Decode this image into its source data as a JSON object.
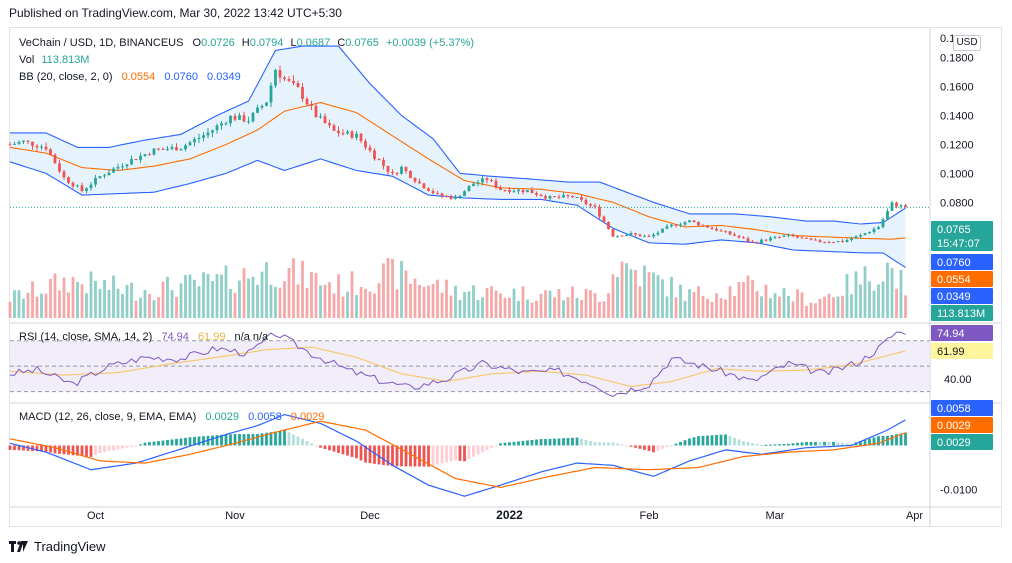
{
  "header": {
    "published": "Published on TradingView.com, Mar 30, 2022 13:42 UTC+5:30"
  },
  "footer": {
    "brand": "TradingView",
    "logo_icon": "tradingview-logo-icon"
  },
  "currency_badge": "USD",
  "legend": {
    "symbol": "VeChain / USD, 1D, BINANCEUS",
    "o_label": "O",
    "o": "0.0726",
    "h_label": "H",
    "h": "0.0794",
    "l_label": "L",
    "l": "0.0687",
    "c_label": "C",
    "c": "0.0765",
    "change": "+0.0039 (+5.37%)",
    "vol_label": "Vol",
    "vol": "113.813M",
    "bb_label": "BB (20, close, 2, 0)",
    "bb_basis": "0.0554",
    "bb_upper": "0.0760",
    "bb_lower": "0.0349",
    "rsi_label": "RSI (14, close, SMA, 14, 2)",
    "rsi": "74.94",
    "rsi_sma": "61.99",
    "rsi_na": "n/a n/a",
    "macd_label": "MACD (12, 26, close, 9, EMA, EMA)",
    "macd_hist": "0.0029",
    "macd": "0.0058",
    "macd_signal": "0.0029"
  },
  "price_axis": {
    "ticks": [
      "0.1800",
      "0.1600",
      "0.1400",
      "0.1200",
      "0.1000",
      "0.0800"
    ],
    "top_cut": "0.1"
  },
  "rsi_axis": {
    "ticks": [
      "40.00"
    ]
  },
  "macd_axis": {
    "ticks": [
      "-0.0100"
    ]
  },
  "badges": {
    "price": "0.0765",
    "countdown": "15:47:07",
    "bb_upper": "0.0760",
    "bb_basis": "0.0554",
    "bb_lower": "0.0349",
    "volume": "113.813M",
    "rsi": "74.94",
    "rsi_sma": "61.99",
    "macd": "0.0058",
    "macd_signal": "0.0029",
    "macd_hist": "0.0029"
  },
  "x_axis": {
    "labels": [
      "Oct",
      "Nov",
      "Dec",
      "2022",
      "Feb",
      "Mar",
      "Apr"
    ]
  },
  "colors": {
    "up": "#26a69a",
    "down": "#ef5350",
    "up_vol": "#8fcfc8",
    "down_vol": "#f4a9a8",
    "bb_band": "#2962ff",
    "bb_basis": "#ff6d00",
    "bb_fill": "#e3f2fd",
    "rsi_line": "#7e57c2",
    "rsi_sma": "#f7c873",
    "rsi_fill": "#ede7f6",
    "macd_line": "#2962ff",
    "signal_line": "#ff6d00",
    "hist_up_strong": "#26a69a",
    "hist_up_weak": "#b2dfdb",
    "hist_down_strong": "#ef5350",
    "hist_down_weak": "#ffcdd2",
    "text_up": "#26a69a",
    "text_label": "#131722"
  },
  "chart_data": {
    "type": "candlestick",
    "title": "VeChain / USD, 1D, BINANCEUS",
    "x_range": [
      "2021-09-12",
      "2022-04-04"
    ],
    "price_ylim": [
      0.0,
      0.195
    ],
    "price_anchors": [
      [
        "2021-09-12",
        0.12
      ],
      [
        "2021-09-15",
        0.122
      ],
      [
        "2021-09-20",
        0.118
      ],
      [
        "2021-09-24",
        0.097
      ],
      [
        "2021-09-28",
        0.088
      ],
      [
        "2021-10-02",
        0.098
      ],
      [
        "2021-10-08",
        0.108
      ],
      [
        "2021-10-14",
        0.116
      ],
      [
        "2021-10-20",
        0.118
      ],
      [
        "2021-10-26",
        0.128
      ],
      [
        "2021-10-31",
        0.139
      ],
      [
        "2021-11-04",
        0.137
      ],
      [
        "2021-11-08",
        0.15
      ],
      [
        "2021-11-10",
        0.172
      ],
      [
        "2021-11-12",
        0.165
      ],
      [
        "2021-11-15",
        0.158
      ],
      [
        "2021-11-19",
        0.14
      ],
      [
        "2021-11-23",
        0.129
      ],
      [
        "2021-11-28",
        0.126
      ],
      [
        "2021-12-02",
        0.112
      ],
      [
        "2021-12-06",
        0.099
      ],
      [
        "2021-12-08",
        0.104
      ],
      [
        "2021-12-12",
        0.093
      ],
      [
        "2021-12-16",
        0.085
      ],
      [
        "2021-12-20",
        0.083
      ],
      [
        "2021-12-24",
        0.093
      ],
      [
        "2021-12-27",
        0.096
      ],
      [
        "2021-12-30",
        0.089
      ],
      [
        "2022-01-05",
        0.088
      ],
      [
        "2022-01-10",
        0.083
      ],
      [
        "2022-01-15",
        0.084
      ],
      [
        "2022-01-20",
        0.076
      ],
      [
        "2022-01-24",
        0.057
      ],
      [
        "2022-01-28",
        0.058
      ],
      [
        "2022-02-01",
        0.056
      ],
      [
        "2022-02-06",
        0.064
      ],
      [
        "2022-02-10",
        0.067
      ],
      [
        "2022-02-15",
        0.062
      ],
      [
        "2022-02-20",
        0.057
      ],
      [
        "2022-02-24",
        0.052
      ],
      [
        "2022-02-28",
        0.055
      ],
      [
        "2022-03-04",
        0.057
      ],
      [
        "2022-03-10",
        0.053
      ],
      [
        "2022-03-16",
        0.053
      ],
      [
        "2022-03-20",
        0.057
      ],
      [
        "2022-03-24",
        0.063
      ],
      [
        "2022-03-27",
        0.079
      ],
      [
        "2022-03-30",
        0.0765
      ]
    ],
    "bb_upper_anchors": [
      [
        "2021-09-12",
        0.128
      ],
      [
        "2021-09-20",
        0.128
      ],
      [
        "2021-09-27",
        0.118
      ],
      [
        "2021-10-04",
        0.118
      ],
      [
        "2021-10-12",
        0.123
      ],
      [
        "2021-10-20",
        0.127
      ],
      [
        "2021-10-28",
        0.14
      ],
      [
        "2021-11-04",
        0.15
      ],
      [
        "2021-11-10",
        0.185
      ],
      [
        "2021-11-16",
        0.188
      ],
      [
        "2021-11-24",
        0.188
      ],
      [
        "2021-12-01",
        0.162
      ],
      [
        "2021-12-08",
        0.14
      ],
      [
        "2021-12-15",
        0.124
      ],
      [
        "2021-12-21",
        0.1
      ],
      [
        "2021-12-28",
        0.098
      ],
      [
        "2022-01-06",
        0.096
      ],
      [
        "2022-01-14",
        0.094
      ],
      [
        "2022-01-21",
        0.094
      ],
      [
        "2022-01-27",
        0.087
      ],
      [
        "2022-02-02",
        0.08
      ],
      [
        "2022-02-10",
        0.072
      ],
      [
        "2022-02-20",
        0.072
      ],
      [
        "2022-02-28",
        0.07
      ],
      [
        "2022-03-08",
        0.067
      ],
      [
        "2022-03-14",
        0.067
      ],
      [
        "2022-03-20",
        0.065
      ],
      [
        "2022-03-25",
        0.066
      ],
      [
        "2022-03-30",
        0.076
      ]
    ],
    "bb_basis_anchors": [
      [
        "2021-09-12",
        0.118
      ],
      [
        "2021-09-20",
        0.114
      ],
      [
        "2021-09-28",
        0.104
      ],
      [
        "2021-10-06",
        0.102
      ],
      [
        "2021-10-14",
        0.105
      ],
      [
        "2021-10-22",
        0.11
      ],
      [
        "2021-10-30",
        0.12
      ],
      [
        "2021-11-06",
        0.13
      ],
      [
        "2021-11-12",
        0.143
      ],
      [
        "2021-11-20",
        0.149
      ],
      [
        "2021-11-28",
        0.142
      ],
      [
        "2021-12-06",
        0.126
      ],
      [
        "2021-12-14",
        0.11
      ],
      [
        "2021-12-22",
        0.095
      ],
      [
        "2021-12-30",
        0.09
      ],
      [
        "2022-01-08",
        0.089
      ],
      [
        "2022-01-16",
        0.086
      ],
      [
        "2022-01-24",
        0.08
      ],
      [
        "2022-02-01",
        0.07
      ],
      [
        "2022-02-09",
        0.063
      ],
      [
        "2022-02-17",
        0.064
      ],
      [
        "2022-02-25",
        0.061
      ],
      [
        "2022-03-05",
        0.057
      ],
      [
        "2022-03-13",
        0.056
      ],
      [
        "2022-03-21",
        0.055
      ],
      [
        "2022-03-27",
        0.0545
      ],
      [
        "2022-03-30",
        0.0554
      ]
    ],
    "bb_lower_anchors": [
      [
        "2021-09-12",
        0.108
      ],
      [
        "2021-09-20",
        0.1
      ],
      [
        "2021-09-28",
        0.085
      ],
      [
        "2021-10-06",
        0.086
      ],
      [
        "2021-10-14",
        0.087
      ],
      [
        "2021-10-22",
        0.093
      ],
      [
        "2021-10-30",
        0.1
      ],
      [
        "2021-11-06",
        0.109
      ],
      [
        "2021-11-12",
        0.102
      ],
      [
        "2021-11-20",
        0.11
      ],
      [
        "2021-11-28",
        0.102
      ],
      [
        "2021-12-06",
        0.098
      ],
      [
        "2021-12-14",
        0.085
      ],
      [
        "2021-12-22",
        0.083
      ],
      [
        "2021-12-30",
        0.082
      ],
      [
        "2022-01-08",
        0.082
      ],
      [
        "2022-01-16",
        0.078
      ],
      [
        "2022-01-24",
        0.062
      ],
      [
        "2022-02-01",
        0.052
      ],
      [
        "2022-02-09",
        0.051
      ],
      [
        "2022-02-17",
        0.054
      ],
      [
        "2022-02-25",
        0.052
      ],
      [
        "2022-03-05",
        0.047
      ],
      [
        "2022-03-13",
        0.046
      ],
      [
        "2022-03-21",
        0.045
      ],
      [
        "2022-03-25",
        0.045
      ],
      [
        "2022-03-30",
        0.0349
      ]
    ],
    "volume_max_m": 300,
    "volume_anchors_m": [
      [
        "2021-09-12",
        70
      ],
      [
        "2021-09-25",
        130
      ],
      [
        "2021-10-10",
        95
      ],
      [
        "2021-10-28",
        125
      ],
      [
        "2021-11-10",
        170
      ],
      [
        "2021-11-25",
        110
      ],
      [
        "2021-12-06",
        155
      ],
      [
        "2021-12-20",
        95
      ],
      [
        "2022-01-05",
        85
      ],
      [
        "2022-01-22",
        80
      ],
      [
        "2022-01-25",
        190
      ],
      [
        "2022-02-10",
        80
      ],
      [
        "2022-02-24",
        110
      ],
      [
        "2022-03-10",
        60
      ],
      [
        "2022-03-26",
        175
      ],
      [
        "2022-03-30",
        114
      ]
    ],
    "rsi_ylim": [
      25,
      80
    ],
    "rsi_bands": [
      30,
      50,
      70
    ],
    "rsi_anchors": [
      [
        "2021-09-12",
        44
      ],
      [
        "2021-09-18",
        47
      ],
      [
        "2021-09-26",
        36
      ],
      [
        "2021-10-04",
        50
      ],
      [
        "2021-10-12",
        57
      ],
      [
        "2021-10-20",
        56
      ],
      [
        "2021-10-28",
        64
      ],
      [
        "2021-11-04",
        60
      ],
      [
        "2021-11-10",
        76
      ],
      [
        "2021-11-18",
        60
      ],
      [
        "2021-11-26",
        47
      ],
      [
        "2021-12-04",
        38
      ],
      [
        "2021-12-10",
        33
      ],
      [
        "2021-12-18",
        40
      ],
      [
        "2021-12-26",
        52
      ],
      [
        "2022-01-04",
        45
      ],
      [
        "2022-01-12",
        46
      ],
      [
        "2022-01-20",
        36
      ],
      [
        "2022-01-24",
        28
      ],
      [
        "2022-02-01",
        36
      ],
      [
        "2022-02-06",
        56
      ],
      [
        "2022-02-12",
        51
      ],
      [
        "2022-02-18",
        45
      ],
      [
        "2022-02-24",
        38
      ],
      [
        "2022-03-04",
        52
      ],
      [
        "2022-03-12",
        44
      ],
      [
        "2022-03-20",
        54
      ],
      [
        "2022-03-24",
        64
      ],
      [
        "2022-03-28",
        77
      ],
      [
        "2022-03-30",
        74.94
      ]
    ],
    "rsi_sma_anchors": [
      [
        "2021-09-12",
        46
      ],
      [
        "2021-09-24",
        43
      ],
      [
        "2021-10-06",
        45
      ],
      [
        "2021-10-18",
        52
      ],
      [
        "2021-10-30",
        58
      ],
      [
        "2021-11-08",
        63
      ],
      [
        "2021-11-18",
        65
      ],
      [
        "2021-11-28",
        57
      ],
      [
        "2021-12-08",
        44
      ],
      [
        "2021-12-18",
        38
      ],
      [
        "2021-12-28",
        44
      ],
      [
        "2022-01-08",
        46
      ],
      [
        "2022-01-18",
        43
      ],
      [
        "2022-01-28",
        34
      ],
      [
        "2022-02-06",
        38
      ],
      [
        "2022-02-16",
        48
      ],
      [
        "2022-02-26",
        46
      ],
      [
        "2022-03-08",
        47
      ],
      [
        "2022-03-18",
        51
      ],
      [
        "2022-03-30",
        61.99
      ]
    ],
    "macd_ylim": [
      -0.0135,
      0.0085
    ],
    "macd_anchors": [
      [
        "2021-09-12",
        0.0005
      ],
      [
        "2021-09-20",
        -0.0015
      ],
      [
        "2021-09-30",
        -0.0055
      ],
      [
        "2021-10-10",
        -0.004
      ],
      [
        "2021-10-20",
        -0.0008
      ],
      [
        "2021-10-30",
        0.0025
      ],
      [
        "2021-11-06",
        0.0045
      ],
      [
        "2021-11-12",
        0.007
      ],
      [
        "2021-11-20",
        0.005
      ],
      [
        "2021-11-28",
        0.001
      ],
      [
        "2021-12-06",
        -0.0045
      ],
      [
        "2021-12-14",
        -0.009
      ],
      [
        "2021-12-22",
        -0.0115
      ],
      [
        "2021-12-30",
        -0.009
      ],
      [
        "2022-01-08",
        -0.006
      ],
      [
        "2022-01-16",
        -0.004
      ],
      [
        "2022-01-24",
        -0.0045
      ],
      [
        "2022-02-02",
        -0.007
      ],
      [
        "2022-02-10",
        -0.0035
      ],
      [
        "2022-02-18",
        -0.001
      ],
      [
        "2022-02-26",
        -0.002
      ],
      [
        "2022-03-08",
        -0.0005
      ],
      [
        "2022-03-18",
        0.0
      ],
      [
        "2022-03-26",
        0.0035
      ],
      [
        "2022-03-30",
        0.0058
      ]
    ],
    "signal_anchors": [
      [
        "2021-09-12",
        0.0015
      ],
      [
        "2021-09-22",
        -0.0005
      ],
      [
        "2021-10-02",
        -0.0035
      ],
      [
        "2021-10-12",
        -0.004
      ],
      [
        "2021-10-22",
        -0.002
      ],
      [
        "2021-11-01",
        0.0005
      ],
      [
        "2021-11-10",
        0.003
      ],
      [
        "2021-11-20",
        0.0055
      ],
      [
        "2021-11-30",
        0.0035
      ],
      [
        "2021-12-10",
        -0.002
      ],
      [
        "2021-12-20",
        -0.0075
      ],
      [
        "2021-12-30",
        -0.0095
      ],
      [
        "2022-01-10",
        -0.007
      ],
      [
        "2022-01-20",
        -0.005
      ],
      [
        "2022-02-01",
        -0.0055
      ],
      [
        "2022-02-12",
        -0.005
      ],
      [
        "2022-02-22",
        -0.0025
      ],
      [
        "2022-03-04",
        -0.0015
      ],
      [
        "2022-03-14",
        -0.001
      ],
      [
        "2022-03-24",
        0.0005
      ],
      [
        "2022-03-30",
        0.0029
      ]
    ]
  }
}
